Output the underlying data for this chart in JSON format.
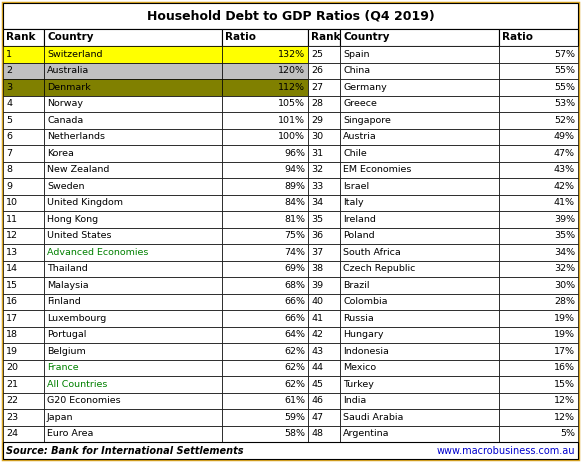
{
  "title": "Household Debt to GDP Ratios (Q4 2019)",
  "source_left": "Source: Bank for International Settlements",
  "source_right": "www.macrobusiness.com.au",
  "left_data": [
    [
      1,
      "Switzerland",
      "132%"
    ],
    [
      2,
      "Australia",
      "120%"
    ],
    [
      3,
      "Denmark",
      "112%"
    ],
    [
      4,
      "Norway",
      "105%"
    ],
    [
      5,
      "Canada",
      "101%"
    ],
    [
      6,
      "Netherlands",
      "100%"
    ],
    [
      7,
      "Korea",
      "96%"
    ],
    [
      8,
      "New Zealand",
      "94%"
    ],
    [
      9,
      "Sweden",
      "89%"
    ],
    [
      10,
      "United Kingdom",
      "84%"
    ],
    [
      11,
      "Hong Kong",
      "81%"
    ],
    [
      12,
      "United States",
      "75%"
    ],
    [
      13,
      "Advanced Economies",
      "74%"
    ],
    [
      14,
      "Thailand",
      "69%"
    ],
    [
      15,
      "Malaysia",
      "68%"
    ],
    [
      16,
      "Finland",
      "66%"
    ],
    [
      17,
      "Luxembourg",
      "66%"
    ],
    [
      18,
      "Portugal",
      "64%"
    ],
    [
      19,
      "Belgium",
      "62%"
    ],
    [
      20,
      "France",
      "62%"
    ],
    [
      21,
      "All Countries",
      "62%"
    ],
    [
      22,
      "G20 Economies",
      "61%"
    ],
    [
      23,
      "Japan",
      "59%"
    ],
    [
      24,
      "Euro Area",
      "58%"
    ]
  ],
  "right_data": [
    [
      25,
      "Spain",
      "57%"
    ],
    [
      26,
      "China",
      "55%"
    ],
    [
      27,
      "Germany",
      "55%"
    ],
    [
      28,
      "Greece",
      "53%"
    ],
    [
      29,
      "Singapore",
      "52%"
    ],
    [
      30,
      "Austria",
      "49%"
    ],
    [
      31,
      "Chile",
      "47%"
    ],
    [
      32,
      "EM Economies",
      "43%"
    ],
    [
      33,
      "Israel",
      "42%"
    ],
    [
      34,
      "Italy",
      "41%"
    ],
    [
      35,
      "Ireland",
      "39%"
    ],
    [
      36,
      "Poland",
      "35%"
    ],
    [
      37,
      "South Africa",
      "34%"
    ],
    [
      38,
      "Czech Republic",
      "32%"
    ],
    [
      39,
      "Brazil",
      "30%"
    ],
    [
      40,
      "Colombia",
      "28%"
    ],
    [
      41,
      "Russia",
      "19%"
    ],
    [
      42,
      "Hungary",
      "19%"
    ],
    [
      43,
      "Indonesia",
      "17%"
    ],
    [
      44,
      "Mexico",
      "16%"
    ],
    [
      45,
      "Turkey",
      "15%"
    ],
    [
      46,
      "India",
      "12%"
    ],
    [
      47,
      "Saudi Arabia",
      "12%"
    ],
    [
      48,
      "Argentina",
      "5%"
    ]
  ],
  "row_colors": [
    "#FFFF00",
    "#C0C0C0",
    "#808000"
  ],
  "green_rows": [
    13,
    20,
    21
  ],
  "outer_border_color": "#DAA520",
  "fig_width": 5.81,
  "fig_height": 4.62,
  "dpi": 100
}
